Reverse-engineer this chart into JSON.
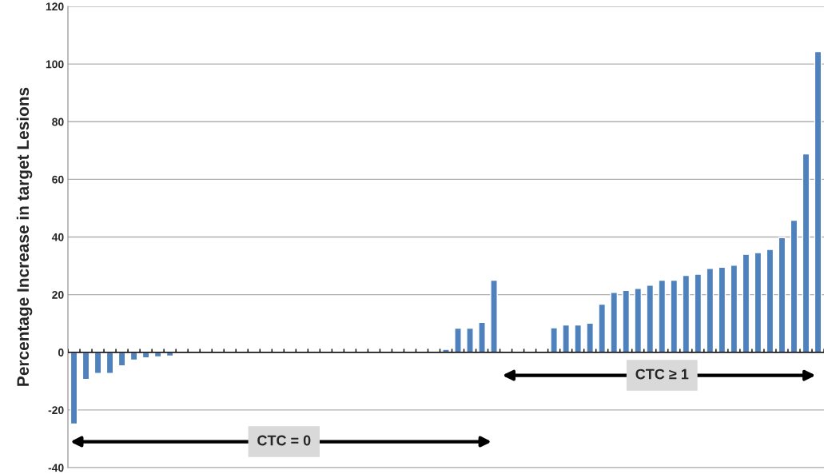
{
  "chart_data": {
    "type": "bar",
    "ylabel": "Percentage Increase in target Lesions",
    "categories": [
      null,
      null,
      null,
      null,
      null,
      null,
      null,
      null,
      null,
      null,
      null,
      null,
      null,
      null,
      null,
      null,
      null,
      null,
      null,
      null,
      null,
      null,
      null,
      null,
      null,
      null,
      null,
      null,
      null,
      null,
      null,
      null,
      null,
      null,
      null,
      null,
      null,
      null,
      null,
      null,
      null,
      null,
      null,
      null,
      null,
      null,
      null,
      null,
      null,
      null,
      null,
      null,
      null,
      null,
      null,
      null,
      null,
      null,
      null,
      null,
      null,
      null,
      null
    ],
    "values": [
      -24.9,
      -9.4,
      -7.3,
      -7.3,
      -4.7,
      -2.7,
      -1.9,
      -1.6,
      -1.3,
      null,
      null,
      null,
      null,
      null,
      null,
      null,
      null,
      null,
      null,
      null,
      null,
      null,
      null,
      null,
      null,
      null,
      null,
      null,
      null,
      null,
      null,
      1,
      8.4,
      8.4,
      10.4,
      25,
      null,
      null,
      null,
      null,
      8.5,
      9.5,
      9.5,
      10.1,
      16.7,
      20.8,
      21.5,
      22.2,
      23.3,
      25.0,
      25.0,
      26.7,
      27.1,
      29.1,
      29.5,
      30.2,
      34.0,
      34.6,
      35.7,
      39.8,
      45.8,
      68.8,
      104.3
    ],
    "color": "#4f81bd",
    "ylim": [
      -40,
      120
    ],
    "yticks": [
      -40,
      -20,
      0,
      20,
      40,
      60,
      80,
      100,
      120
    ],
    "grid": "y",
    "annotations": [
      "CTC = 0",
      "CTC ≥ 1"
    ]
  }
}
